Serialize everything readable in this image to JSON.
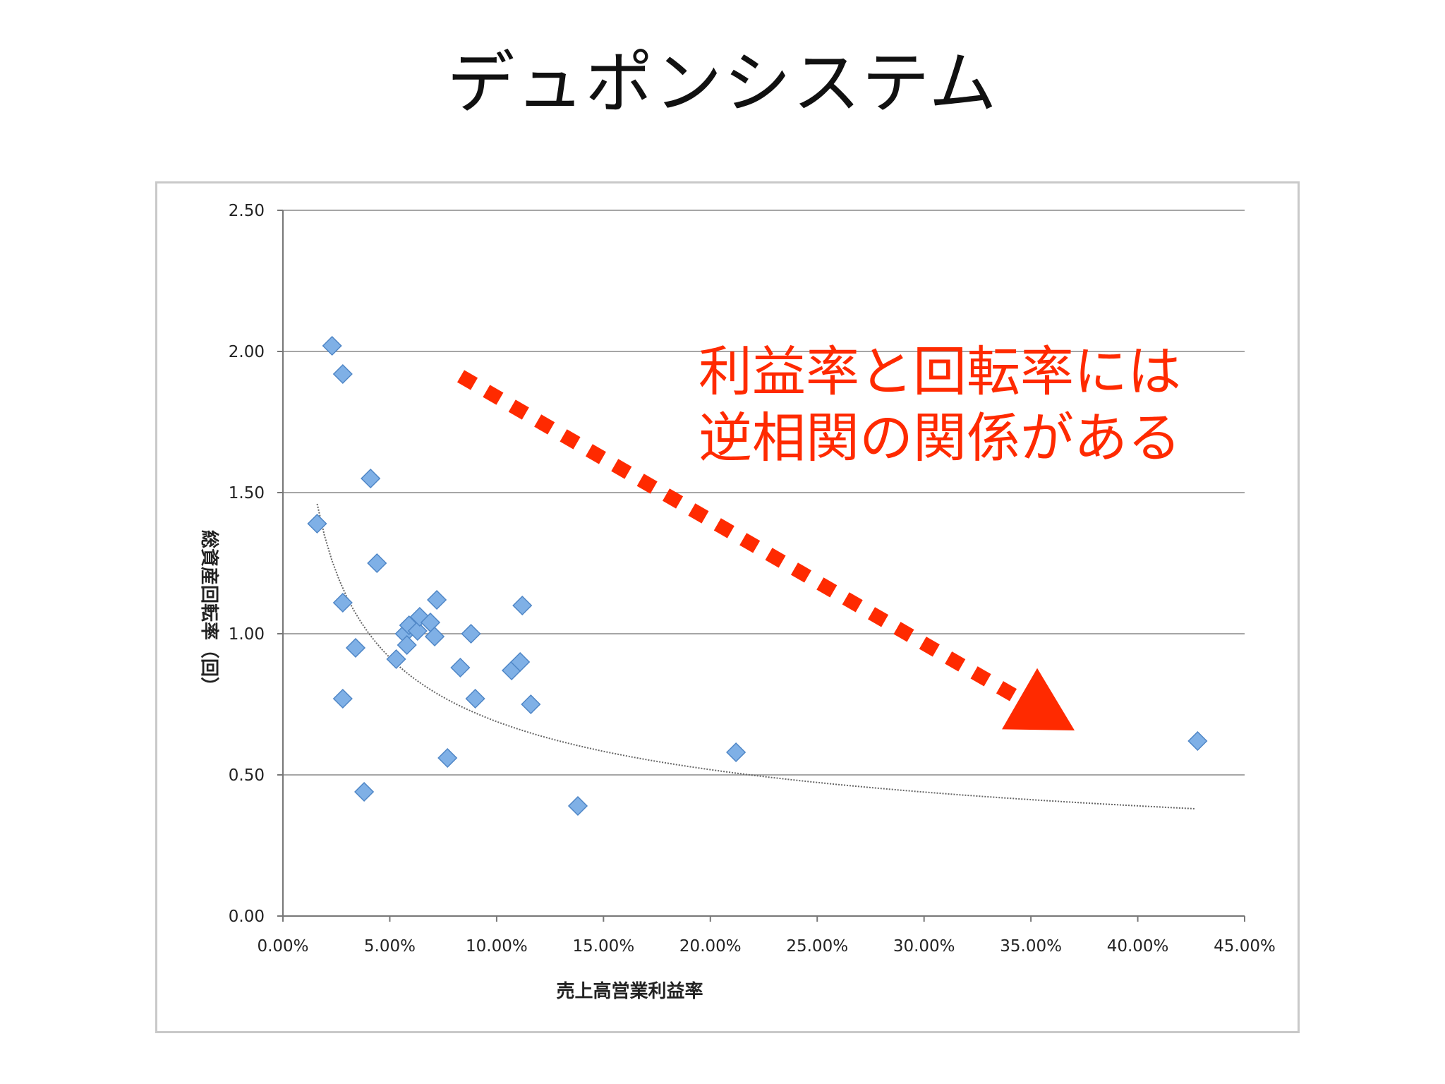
{
  "slide": {
    "title": "デュポンシステム"
  },
  "annotation": {
    "line1": "利益率と回転率には",
    "line2": "逆相関の関係がある"
  },
  "colors": {
    "marker": "#7fb0e6",
    "marker_stroke": "#4f86c6",
    "gridline": "#a6a6a6",
    "trendline": "#666666",
    "arrow": "#ff2a00"
  },
  "chart_data": {
    "type": "scatter",
    "xlabel": "売上高営業利益率",
    "ylabel": "総資産回転率（回）",
    "xlim": [
      0,
      0.45
    ],
    "ylim": [
      0,
      2.5
    ],
    "x_ticks": [
      {
        "value": 0,
        "label": "0.00%"
      },
      {
        "value": 0.05,
        "label": "5.00%"
      },
      {
        "value": 0.1,
        "label": "10.00%"
      },
      {
        "value": 0.15,
        "label": "15.00%"
      },
      {
        "value": 0.2,
        "label": "20.00%"
      },
      {
        "value": 0.25,
        "label": "25.00%"
      },
      {
        "value": 0.3,
        "label": "30.00%"
      },
      {
        "value": 0.35,
        "label": "35.00%"
      },
      {
        "value": 0.4,
        "label": "40.00%"
      },
      {
        "value": 0.45,
        "label": "45.00%"
      }
    ],
    "y_ticks": [
      {
        "value": 0,
        "label": "0.00"
      },
      {
        "value": 0.5,
        "label": "0.50"
      },
      {
        "value": 1.0,
        "label": "1.00"
      },
      {
        "value": 1.5,
        "label": "1.50"
      },
      {
        "value": 2.0,
        "label": "2.00"
      },
      {
        "value": 2.5,
        "label": "2.50"
      }
    ],
    "grid": "horizontal",
    "points": [
      {
        "x": 0.016,
        "y": 1.39
      },
      {
        "x": 0.023,
        "y": 2.02
      },
      {
        "x": 0.028,
        "y": 1.92
      },
      {
        "x": 0.028,
        "y": 1.11
      },
      {
        "x": 0.028,
        "y": 0.77
      },
      {
        "x": 0.034,
        "y": 0.95
      },
      {
        "x": 0.038,
        "y": 0.44
      },
      {
        "x": 0.041,
        "y": 1.55
      },
      {
        "x": 0.044,
        "y": 1.25
      },
      {
        "x": 0.053,
        "y": 0.91
      },
      {
        "x": 0.057,
        "y": 1.0
      },
      {
        "x": 0.058,
        "y": 0.96
      },
      {
        "x": 0.059,
        "y": 1.03
      },
      {
        "x": 0.063,
        "y": 1.01
      },
      {
        "x": 0.064,
        "y": 1.06
      },
      {
        "x": 0.069,
        "y": 1.04
      },
      {
        "x": 0.071,
        "y": 0.99
      },
      {
        "x": 0.072,
        "y": 1.12
      },
      {
        "x": 0.077,
        "y": 0.56
      },
      {
        "x": 0.083,
        "y": 0.88
      },
      {
        "x": 0.088,
        "y": 1.0
      },
      {
        "x": 0.09,
        "y": 0.77
      },
      {
        "x": 0.107,
        "y": 0.87
      },
      {
        "x": 0.111,
        "y": 0.9
      },
      {
        "x": 0.112,
        "y": 1.1
      },
      {
        "x": 0.116,
        "y": 0.75
      },
      {
        "x": 0.138,
        "y": 0.39
      },
      {
        "x": 0.212,
        "y": 0.58
      },
      {
        "x": 0.428,
        "y": 0.62
      }
    ],
    "trendline": {
      "type": "power",
      "from": [
        0.016,
        1.46
      ],
      "to": [
        0.427,
        0.38
      ]
    }
  }
}
